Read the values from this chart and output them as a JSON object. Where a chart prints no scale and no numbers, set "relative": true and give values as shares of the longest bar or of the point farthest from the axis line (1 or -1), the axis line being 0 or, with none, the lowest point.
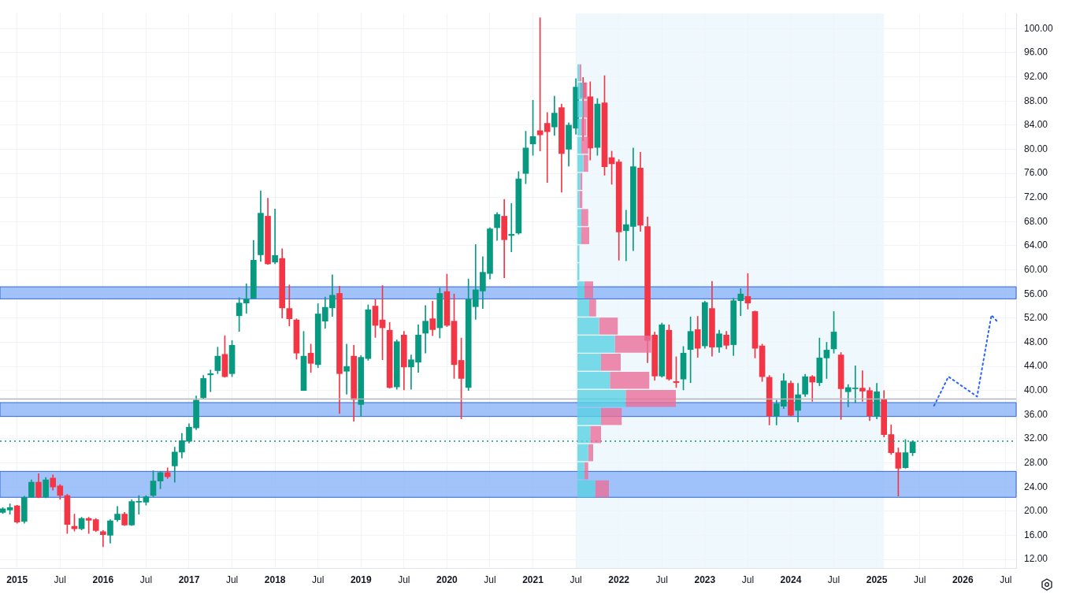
{
  "chart_data": [
    {
      "type": "candlestick",
      "x": [
        "2014-11",
        "2014-12",
        "2015-01",
        "2015-02",
        "2015-03",
        "2015-04",
        "2015-05",
        "2015-06",
        "2015-07",
        "2015-08",
        "2015-09",
        "2015-10",
        "2015-11",
        "2015-12",
        "2016-01",
        "2016-02",
        "2016-03",
        "2016-04",
        "2016-05",
        "2016-06",
        "2016-07",
        "2016-08",
        "2016-09",
        "2016-10",
        "2016-11",
        "2016-12",
        "2017-01",
        "2017-02",
        "2017-03",
        "2017-04",
        "2017-05",
        "2017-06",
        "2017-07",
        "2017-08",
        "2017-09",
        "2017-10",
        "2017-11",
        "2017-12",
        "2018-01",
        "2018-02",
        "2018-03",
        "2018-04",
        "2018-05",
        "2018-06",
        "2018-07",
        "2018-08",
        "2018-09",
        "2018-10",
        "2018-11",
        "2018-12",
        "2019-01",
        "2019-02",
        "2019-03",
        "2019-04",
        "2019-05",
        "2019-06",
        "2019-07",
        "2019-08",
        "2019-09",
        "2019-10",
        "2019-11",
        "2019-12",
        "2020-01",
        "2020-02",
        "2020-03",
        "2020-04",
        "2020-05",
        "2020-06",
        "2020-07",
        "2020-08",
        "2020-09",
        "2020-10",
        "2020-11",
        "2020-12",
        "2021-01",
        "2021-02",
        "2021-03",
        "2021-04",
        "2021-05",
        "2021-06",
        "2021-07",
        "2021-08",
        "2021-09",
        "2021-10",
        "2021-11",
        "2021-12",
        "2022-01",
        "2022-02",
        "2022-03",
        "2022-04",
        "2022-05",
        "2022-06",
        "2022-07",
        "2022-08",
        "2022-09",
        "2022-10",
        "2022-11",
        "2022-12",
        "2023-01",
        "2023-02",
        "2023-03",
        "2023-04",
        "2023-05",
        "2023-06",
        "2023-07",
        "2023-08",
        "2023-09",
        "2023-10",
        "2023-11",
        "2023-12",
        "2024-01",
        "2024-02",
        "2024-03",
        "2024-04",
        "2024-05",
        "2024-06",
        "2024-07",
        "2024-08",
        "2024-09",
        "2024-10",
        "2024-11",
        "2024-12",
        "2025-01",
        "2025-02",
        "2025-03",
        "2025-04",
        "2025-05",
        "2025-06"
      ],
      "ohlc": [
        [
          19.8,
          20.6,
          19.6,
          20.4
        ],
        [
          20.2,
          21.2,
          19.5,
          20.6
        ],
        [
          20.9,
          21.0,
          18.0,
          18.2
        ],
        [
          18.3,
          22.5,
          18.0,
          22.3
        ],
        [
          22.3,
          25.2,
          22.3,
          24.8
        ],
        [
          24.8,
          26.2,
          22.2,
          22.3
        ],
        [
          22.3,
          25.6,
          22.2,
          25.2
        ],
        [
          25.5,
          26.0,
          23.5,
          24.0
        ],
        [
          24.2,
          24.4,
          22.0,
          22.6
        ],
        [
          22.6,
          22.8,
          16.3,
          17.8
        ],
        [
          17.5,
          19.5,
          16.7,
          17.1
        ],
        [
          17.1,
          19.0,
          16.9,
          18.8
        ],
        [
          18.8,
          19.0,
          16.3,
          18.5
        ],
        [
          18.6,
          18.8,
          16.6,
          16.8
        ],
        [
          16.6,
          16.8,
          14.1,
          16.1
        ],
        [
          16.0,
          18.6,
          14.7,
          18.4
        ],
        [
          18.6,
          20.8,
          18.3,
          19.5
        ],
        [
          19.5,
          19.8,
          17.6,
          17.7
        ],
        [
          17.7,
          21.9,
          17.6,
          21.6
        ],
        [
          21.5,
          22.6,
          19.5,
          21.6
        ],
        [
          21.5,
          22.6,
          21.0,
          22.4
        ],
        [
          22.6,
          26.7,
          22.4,
          25.0
        ],
        [
          25.0,
          26.6,
          23.7,
          26.4
        ],
        [
          26.4,
          27.2,
          25.4,
          25.7
        ],
        [
          27.5,
          30.6,
          24.8,
          29.8
        ],
        [
          29.8,
          32.9,
          28.8,
          31.7
        ],
        [
          31.6,
          34.5,
          31.3,
          33.9
        ],
        [
          33.8,
          39.1,
          33.5,
          38.4
        ],
        [
          38.8,
          42.5,
          38.6,
          42.0
        ],
        [
          42.6,
          43.4,
          39.8,
          42.8
        ],
        [
          43.3,
          47.2,
          42.8,
          45.7
        ],
        [
          46.0,
          49.1,
          42.2,
          42.3
        ],
        [
          42.8,
          48.3,
          42.3,
          47.5
        ],
        [
          52.4,
          55.4,
          49.8,
          54.5
        ],
        [
          54.5,
          57.7,
          52.8,
          55.2
        ],
        [
          55.3,
          64.9,
          55.3,
          61.6
        ],
        [
          62.5,
          73.1,
          61.4,
          69.4
        ],
        [
          68.9,
          71.9,
          60.9,
          61.0
        ],
        [
          61.3,
          70.1,
          61.0,
          62.4
        ],
        [
          61.9,
          63.5,
          52.0,
          53.7
        ],
        [
          53.6,
          57.5,
          50.7,
          51.9
        ],
        [
          51.7,
          51.9,
          45.2,
          46.2
        ],
        [
          40.0,
          49.8,
          40.0,
          45.7
        ],
        [
          46.2,
          47.7,
          43.0,
          44.5
        ],
        [
          44.3,
          54.4,
          43.8,
          52.7
        ],
        [
          51.5,
          55.5,
          50.3,
          53.8
        ],
        [
          53.7,
          59.2,
          52.3,
          55.8
        ],
        [
          56.1,
          57.3,
          36.2,
          42.8
        ],
        [
          43.2,
          47.7,
          39.4,
          44.0
        ],
        [
          45.7,
          47.5,
          34.9,
          38.5
        ],
        [
          37.7,
          45.8,
          35.7,
          45.5
        ],
        [
          45.3,
          54.2,
          45.0,
          53.4
        ],
        [
          54.0,
          55.1,
          48.8,
          50.8
        ],
        [
          51.7,
          57.4,
          45.1,
          50.4
        ],
        [
          50.0,
          51.3,
          40.4,
          40.5
        ],
        [
          40.6,
          48.4,
          40.2,
          48.1
        ],
        [
          49.2,
          49.8,
          40.1,
          43.9
        ],
        [
          43.9,
          45.9,
          40.2,
          45.1
        ],
        [
          44.7,
          50.9,
          43.0,
          49.2
        ],
        [
          49.5,
          54.1,
          46.2,
          51.5
        ],
        [
          51.9,
          54.8,
          49.1,
          50.1
        ],
        [
          50.4,
          57.0,
          48.7,
          56.1
        ],
        [
          56.4,
          59.3,
          50.6,
          50.8
        ],
        [
          51.5,
          56.0,
          42.0,
          44.3
        ],
        [
          45.0,
          48.7,
          35.3,
          42.0
        ],
        [
          40.5,
          58.5,
          40.0,
          55.1
        ],
        [
          53.9,
          64.2,
          51.8,
          56.7
        ],
        [
          56.5,
          62.2,
          53.6,
          59.6
        ],
        [
          59.4,
          67.0,
          58.5,
          66.8
        ],
        [
          67.0,
          69.5,
          64.9,
          69.2
        ],
        [
          68.9,
          71.7,
          58.7,
          65.0
        ],
        [
          65.7,
          71.0,
          63.0,
          65.9
        ],
        [
          66.1,
          76.3,
          65.9,
          75.1
        ],
        [
          76.0,
          83.0,
          74.3,
          80.2
        ],
        [
          80.9,
          88.1,
          79.0,
          82.1
        ],
        [
          83.1,
          101.8,
          79.7,
          82.4
        ],
        [
          84.3,
          86.1,
          74.5,
          82.9
        ],
        [
          83.7,
          88.8,
          82.3,
          86.0
        ],
        [
          86.9,
          87.5,
          72.9,
          79.3
        ],
        [
          80.0,
          84.4,
          77.2,
          84.0
        ],
        [
          83.5,
          91.7,
          82.5,
          90.3
        ],
        [
          91.0,
          91.9,
          81.4,
          88.6
        ],
        [
          88.7,
          91.2,
          78.2,
          80.2
        ],
        [
          80.3,
          88.4,
          79.0,
          87.5
        ],
        [
          87.7,
          92.2,
          75.7,
          77.1
        ],
        [
          78.6,
          79.7,
          74.2,
          77.6
        ],
        [
          77.9,
          78.3,
          61.6,
          66.3
        ],
        [
          66.5,
          69.9,
          61.5,
          67.5
        ],
        [
          67.2,
          80.2,
          63.2,
          77.1
        ],
        [
          76.9,
          79.5,
          66.4,
          67.4
        ],
        [
          67.2,
          68.8,
          44.6,
          48.3
        ],
        [
          49.2,
          49.7,
          41.7,
          42.4
        ],
        [
          42.4,
          51.2,
          42.2,
          50.9
        ],
        [
          50.0,
          50.9,
          41.7,
          41.9
        ],
        [
          41.5,
          45.6,
          40.5,
          41.3
        ],
        [
          41.9,
          47.3,
          40.1,
          46.2
        ],
        [
          46.8,
          52.2,
          41.3,
          49.8
        ],
        [
          50.1,
          52.3,
          45.5,
          47.0
        ],
        [
          47.4,
          54.8,
          47.0,
          54.6
        ],
        [
          53.6,
          58.1,
          45.7,
          47.2
        ],
        [
          47.2,
          50.0,
          46.3,
          49.4
        ],
        [
          49.2,
          49.8,
          46.9,
          47.5
        ],
        [
          47.6,
          55.3,
          45.8,
          54.9
        ],
        [
          54.9,
          56.9,
          52.4,
          56.0
        ],
        [
          55.6,
          59.4,
          53.5,
          54.5
        ],
        [
          53.1,
          53.2,
          45.4,
          47.0
        ],
        [
          47.4,
          47.7,
          41.5,
          42.3
        ],
        [
          42.2,
          42.5,
          34.3,
          35.8
        ],
        [
          35.8,
          38.4,
          34.3,
          37.8
        ],
        [
          37.4,
          42.8,
          37.0,
          41.6
        ],
        [
          41.2,
          41.6,
          35.8,
          35.9
        ],
        [
          36.7,
          41.2,
          34.8,
          39.3
        ],
        [
          39.4,
          42.7,
          39.0,
          42.3
        ],
        [
          42.3,
          42.5,
          38.2,
          41.4
        ],
        [
          41.3,
          48.7,
          40.8,
          45.4
        ],
        [
          45.4,
          48.0,
          42.0,
          46.7
        ],
        [
          46.9,
          53.1,
          46.2,
          49.7
        ],
        [
          45.9,
          46.3,
          35.2,
          40.3
        ],
        [
          39.8,
          41.0,
          37.3,
          40.5
        ],
        [
          40.3,
          44.1,
          38.0,
          40.4
        ],
        [
          40.4,
          43.3,
          38.2,
          39.9
        ],
        [
          40.0,
          40.5,
          35.0,
          35.8
        ],
        [
          35.7,
          41.2,
          35.3,
          39.8
        ],
        [
          38.5,
          40.0,
          32.3,
          32.7
        ],
        [
          32.7,
          34.3,
          29.4,
          29.7
        ],
        [
          29.7,
          30.5,
          22.5,
          27.1
        ],
        [
          27.2,
          31.9,
          27.1,
          29.7
        ],
        [
          29.7,
          31.7,
          29.2,
          31.5
        ]
      ],
      "colors": [
        "#089981",
        "#089981",
        "#f23645",
        "#089981",
        "#089981",
        "#f23645",
        "#089981",
        "#f23645",
        "#f23645",
        "#f23645",
        "#f23645",
        "#089981",
        "#f23645",
        "#f23645",
        "#f23645",
        "#089981",
        "#089981",
        "#f23645",
        "#089981",
        "#089981",
        "#089981",
        "#089981",
        "#089981",
        "#f23645",
        "#089981",
        "#089981",
        "#089981",
        "#089981",
        "#089981",
        "#089981",
        "#089981",
        "#f23645",
        "#089981",
        "#089981",
        "#089981",
        "#089981",
        "#089981",
        "#f23645",
        "#089981",
        "#f23645",
        "#f23645",
        "#f23645",
        "#089981",
        "#f23645",
        "#089981",
        "#089981",
        "#089981",
        "#f23645",
        "#089981",
        "#f23645",
        "#089981",
        "#089981",
        "#f23645",
        "#f23645",
        "#f23645",
        "#089981",
        "#f23645",
        "#089981",
        "#089981",
        "#089981",
        "#f23645",
        "#089981",
        "#f23645",
        "#f23645",
        "#f23645",
        "#089981",
        "#089981",
        "#089981",
        "#089981",
        "#089981",
        "#f23645",
        "#089981",
        "#089981",
        "#089981",
        "#089981",
        "#f23645",
        "#f23645",
        "#089981",
        "#f23645",
        "#089981",
        "#089981",
        "#f23645",
        "#f23645",
        "#089981",
        "#f23645",
        "#f23645",
        "#f23645",
        "#089981",
        "#089981",
        "#f23645",
        "#f23645",
        "#f23645",
        "#089981",
        "#f23645",
        "#f23645",
        "#089981",
        "#089981",
        "#f23645",
        "#089981",
        "#f23645",
        "#089981",
        "#f23645",
        "#089981",
        "#089981",
        "#f23645",
        "#f23645",
        "#f23645",
        "#f23645",
        "#089981",
        "#089981",
        "#f23645",
        "#089981",
        "#089981",
        "#f23645",
        "#089981",
        "#089981",
        "#089981",
        "#f23645",
        "#089981",
        "#089981",
        "#f23645",
        "#f23645",
        "#089981",
        "#f23645",
        "#f23645",
        "#f23645",
        "#089981",
        "#089981"
      ],
      "series": [
        {
          "type": "line",
          "x": [
            "2025-09",
            "2025-11",
            "2026-03",
            "2026-05",
            "2026-06"
          ],
          "values": [
            37.5,
            42.3,
            39.0,
            52.5,
            51.2
          ],
          "color": "#2962ff",
          "line_style": "dotted"
        }
      ],
      "marker": "none",
      "xlim": [
        "2014-10-20",
        "2026-08-15"
      ],
      "xticks": [
        {
          "value": "2015-01",
          "label": "2015"
        },
        {
          "value": "2015-07",
          "label": "Jul"
        },
        {
          "value": "2016-01",
          "label": "2016"
        },
        {
          "value": "2016-07",
          "label": "Jul"
        },
        {
          "value": "2017-01",
          "label": "2017"
        },
        {
          "value": "2017-07",
          "label": "Jul"
        },
        {
          "value": "2018-01",
          "label": "2018"
        },
        {
          "value": "2018-07",
          "label": "Jul"
        },
        {
          "value": "2019-01",
          "label": "2019"
        },
        {
          "value": "2019-07",
          "label": "Jul"
        },
        {
          "value": "2020-01",
          "label": "2020"
        },
        {
          "value": "2020-07",
          "label": "Jul"
        },
        {
          "value": "2021-01",
          "label": "2021"
        },
        {
          "value": "2021-07",
          "label": "Jul"
        },
        {
          "value": "2022-01",
          "label": "2022"
        },
        {
          "value": "2022-07",
          "label": "Jul"
        },
        {
          "value": "2023-01",
          "label": "2023"
        },
        {
          "value": "2023-07",
          "label": "Jul"
        },
        {
          "value": "2024-01",
          "label": "2024"
        },
        {
          "value": "2024-07",
          "label": "Jul"
        },
        {
          "value": "2025-01",
          "label": "2025"
        },
        {
          "value": "2025-07",
          "label": "Jul"
        },
        {
          "value": "2026-01",
          "label": "2026"
        },
        {
          "value": "2026-07",
          "label": "Jul"
        }
      ],
      "ylim": [
        10.5,
        102.5
      ],
      "yticks": [
        {
          "value": 12,
          "label": "12.00"
        },
        {
          "value": 16,
          "label": "16.00"
        },
        {
          "value": 20,
          "label": "20.00"
        },
        {
          "value": 24,
          "label": "24.00"
        },
        {
          "value": 28,
          "label": "28.00"
        },
        {
          "value": 32,
          "label": "32.00"
        },
        {
          "value": 36,
          "label": "36.00"
        },
        {
          "value": 40,
          "label": "40.00"
        },
        {
          "value": 44,
          "label": "44.00"
        },
        {
          "value": 48,
          "label": "48.00"
        },
        {
          "value": 52,
          "label": "52.00"
        },
        {
          "value": 56,
          "label": "56.00"
        },
        {
          "value": 60,
          "label": "60.00"
        },
        {
          "value": 64,
          "label": "64.00"
        },
        {
          "value": 68,
          "label": "68.00"
        },
        {
          "value": 72,
          "label": "72.00"
        },
        {
          "value": 76,
          "label": "76.00"
        },
        {
          "value": 80,
          "label": "80.00"
        },
        {
          "value": 84,
          "label": "84.00"
        },
        {
          "value": 88,
          "label": "88.00"
        },
        {
          "value": 92,
          "label": "92.00"
        },
        {
          "value": 96,
          "label": "96.00"
        },
        {
          "value": 100,
          "label": "100.00"
        }
      ],
      "grid": true,
      "legend": false,
      "bands": [
        {
          "axis": "x",
          "from": "2021-07",
          "to": "2025-02",
          "color": "#eef8fd"
        },
        {
          "axis": "y",
          "from": 22.3,
          "to": 26.6,
          "color": "#8ab4f8"
        },
        {
          "axis": "y",
          "from": 35.7,
          "to": 38.0,
          "color": "#8ab4f8"
        },
        {
          "axis": "y",
          "from": 55.2,
          "to": 57.2,
          "color": "#8ab4f8"
        }
      ],
      "ref_lines": [
        {
          "axis": "y",
          "value": 38.6,
          "color": "#b2b5be",
          "line_style": "solid"
        },
        {
          "axis": "y",
          "value": 31.6,
          "color": "#089981",
          "line_style": "dotted"
        }
      ]
    },
    {
      "type": "bar",
      "orientation": "horizontal",
      "stacked": true,
      "relative": true,
      "legend": false,
      "categories": [
        null,
        null,
        null,
        null,
        null,
        null,
        null,
        null,
        null,
        null,
        null,
        null,
        null,
        null,
        null,
        null,
        null,
        null,
        null,
        null,
        null,
        null,
        null,
        null
      ],
      "series": [
        {
          "color": "#5bd2e3",
          "values": [
            0.02,
            0.06,
            0.06,
            0.04,
            0.04,
            0.06,
            0.03,
            0.02,
            0.04,
            0.04,
            0.02,
            0.02,
            0.07,
            0.12,
            0.22,
            0.38,
            0.24,
            0.33,
            0.49,
            0.24,
            0.13,
            0.11,
            0.07,
            0.18
          ]
        },
        {
          "color": "#ec6f9a",
          "values": [
            0.02,
            0.04,
            0.04,
            0.05,
            0.07,
            0.05,
            0.02,
            0.03,
            0.07,
            0.08,
            0,
            0,
            0.09,
            0.07,
            0.19,
            0.37,
            0.2,
            0.4,
            0.51,
            0.21,
            0.11,
            0.05,
            0.04,
            0.14
          ]
        }
      ]
    }
  ]
}
